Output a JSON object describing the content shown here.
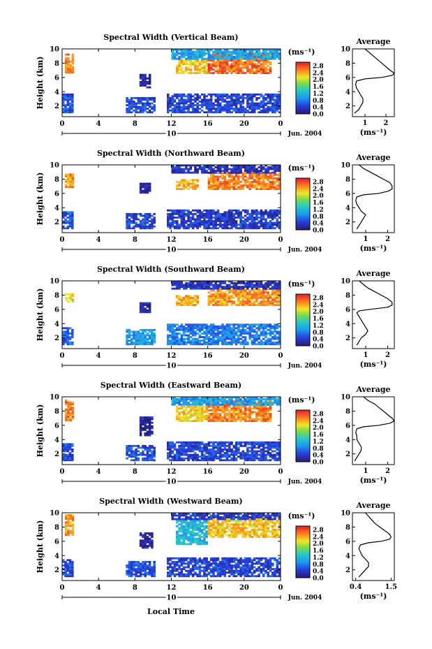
{
  "figure": {
    "xlabel": "Local Time",
    "date_label": "Jun. 2004",
    "day_label": "10"
  },
  "chart_data": [
    {
      "type": "heatmap",
      "title": "Spectral Width (Vertical Beam)",
      "ylabel": "Height (km)",
      "ylim": [
        0.5,
        10
      ],
      "yticks": [
        "2",
        "4",
        "6",
        "8",
        "10"
      ],
      "xlim": [
        0,
        24
      ],
      "xticks": [
        "0",
        "4",
        "8",
        "12",
        "16",
        "20",
        "0"
      ],
      "colorbar": {
        "unit": "(ms⁻¹)",
        "ticks": [
          "0.0",
          "0.4",
          "0.8",
          "1.2",
          "1.6",
          "2.0",
          "2.4",
          "2.8"
        ],
        "range": [
          0,
          3.0
        ]
      },
      "average_profile": {
        "title": "Average",
        "xlabel": "(ms⁻¹)",
        "xticks": [
          "1",
          "2"
        ],
        "xlim": [
          0.4,
          2.4
        ],
        "heights": [
          1.0,
          1.5,
          2.0,
          2.5,
          3.0,
          3.5,
          4.0,
          4.5,
          5.0,
          5.5,
          5.8,
          6.0,
          6.3,
          6.6,
          7.0,
          7.5,
          8.0,
          8.5,
          9.0,
          9.5,
          10.0
        ],
        "values": [
          0.5,
          0.7,
          0.8,
          0.9,
          0.9,
          0.8,
          0.7,
          0.6,
          0.55,
          0.6,
          1.0,
          1.8,
          2.3,
          2.4,
          2.2,
          2.0,
          1.8,
          1.6,
          1.4,
          1.2,
          1.0
        ]
      },
      "blocks": [
        {
          "t0": 0,
          "t1": 1.2,
          "h0": 1.0,
          "h1": 3.6,
          "v": 0.55
        },
        {
          "t0": 0.3,
          "t1": 1.1,
          "h0": 6.6,
          "h1": 9.2,
          "v": 2.6
        },
        {
          "t0": 7.0,
          "t1": 10.2,
          "h0": 1.0,
          "h1": 3.2,
          "v": 0.5
        },
        {
          "t0": 8.5,
          "t1": 9.6,
          "h0": 4.5,
          "h1": 6.5,
          "v": 0.15
        },
        {
          "t0": 11.5,
          "t1": 24,
          "h0": 1.0,
          "h1": 3.6,
          "v": 0.45
        },
        {
          "t0": 12.5,
          "t1": 16,
          "h0": 6.5,
          "h1": 8.6,
          "v": 2.3
        },
        {
          "t0": 16,
          "t1": 23,
          "h0": 6.5,
          "h1": 9.3,
          "v": 2.7
        },
        {
          "t0": 12,
          "t1": 24,
          "h0": 8.5,
          "h1": 10,
          "v": 1.0
        }
      ]
    },
    {
      "type": "heatmap",
      "title": "Spectral Width (Northward Beam)",
      "ylabel": "Height (km)",
      "ylim": [
        0.5,
        10
      ],
      "yticks": [
        "2",
        "4",
        "6",
        "8",
        "10"
      ],
      "xlim": [
        0,
        24
      ],
      "xticks": [
        "0",
        "4",
        "8",
        "12",
        "16",
        "20",
        "0"
      ],
      "colorbar": {
        "unit": "(ms⁻¹)",
        "ticks": [
          "0.0",
          "0.4",
          "0.8",
          "1.2",
          "1.6",
          "2.0",
          "2.4",
          "2.8"
        ],
        "range": [
          0,
          3.0
        ]
      },
      "average_profile": {
        "title": "Average",
        "xlabel": "(ms⁻¹)",
        "xticks": [
          "1",
          "2"
        ],
        "xlim": [
          0.4,
          2.3
        ],
        "heights": [
          1.0,
          1.5,
          2.0,
          2.5,
          3.0,
          3.5,
          4.0,
          4.5,
          5.0,
          5.5,
          5.8,
          6.0,
          6.3,
          6.6,
          7.0,
          7.5,
          8.0,
          8.5,
          9.0,
          9.5,
          10.0
        ],
        "values": [
          0.6,
          0.7,
          0.8,
          0.9,
          1.0,
          0.8,
          0.7,
          0.6,
          0.55,
          0.6,
          0.9,
          1.6,
          2.0,
          2.2,
          2.2,
          2.1,
          1.8,
          1.5,
          1.2,
          0.9,
          0.7
        ]
      },
      "blocks": [
        {
          "t0": 0,
          "t1": 1.2,
          "h0": 1.0,
          "h1": 3.5,
          "v": 0.6
        },
        {
          "t0": 0.3,
          "t1": 1.1,
          "h0": 6.8,
          "h1": 8.6,
          "v": 2.5
        },
        {
          "t0": 7.0,
          "t1": 10.2,
          "h0": 1.0,
          "h1": 3.2,
          "v": 0.5
        },
        {
          "t0": 8.5,
          "t1": 9.6,
          "h0": 6.0,
          "h1": 7.5,
          "v": 0.15
        },
        {
          "t0": 11.5,
          "t1": 24,
          "h0": 1.0,
          "h1": 3.6,
          "v": 0.4
        },
        {
          "t0": 12.5,
          "t1": 15,
          "h0": 6.5,
          "h1": 7.8,
          "v": 2.4
        },
        {
          "t0": 16,
          "t1": 24,
          "h0": 6.5,
          "h1": 8.8,
          "v": 2.6
        },
        {
          "t0": 12,
          "t1": 24,
          "h0": 8.8,
          "h1": 10,
          "v": 0.3
        }
      ]
    },
    {
      "type": "heatmap",
      "title": "Spectral Width (Southward Beam)",
      "ylabel": "Height (km)",
      "ylim": [
        0.5,
        10
      ],
      "yticks": [
        "2",
        "4",
        "6",
        "8",
        "10"
      ],
      "xlim": [
        0,
        24
      ],
      "xticks": [
        "0",
        "4",
        "8",
        "12",
        "16",
        "20",
        "0"
      ],
      "colorbar": {
        "unit": "(ms⁻¹)",
        "ticks": [
          "0.0",
          "0.4",
          "0.8",
          "1.2",
          "1.6",
          "2.0",
          "2.4",
          "2.8"
        ],
        "range": [
          0,
          3.0
        ]
      },
      "average_profile": {
        "title": "Average",
        "xlabel": "(ms⁻¹)",
        "xticks": [
          "1",
          "2"
        ],
        "xlim": [
          0.4,
          2.3
        ],
        "heights": [
          1.0,
          1.5,
          2.0,
          2.5,
          3.0,
          3.5,
          4.0,
          4.5,
          5.0,
          5.5,
          5.8,
          6.0,
          6.3,
          6.6,
          7.0,
          7.5,
          8.0,
          8.5,
          9.0,
          9.5,
          10.0
        ],
        "values": [
          0.6,
          0.7,
          0.8,
          1.0,
          1.1,
          1.0,
          0.9,
          0.8,
          0.7,
          0.6,
          0.7,
          1.2,
          2.0,
          2.2,
          2.2,
          2.0,
          1.7,
          1.4,
          1.1,
          0.9,
          0.7
        ]
      },
      "blocks": [
        {
          "t0": 0,
          "t1": 1.2,
          "h0": 1.0,
          "h1": 3.5,
          "v": 0.6
        },
        {
          "t0": 0.3,
          "t1": 1.1,
          "h0": 7.0,
          "h1": 8.2,
          "v": 2.2
        },
        {
          "t0": 7.0,
          "t1": 10.2,
          "h0": 1.0,
          "h1": 3.2,
          "v": 1.0
        },
        {
          "t0": 8.5,
          "t1": 9.6,
          "h0": 5.5,
          "h1": 7.0,
          "v": 0.15
        },
        {
          "t0": 11.5,
          "t1": 24,
          "h0": 1.0,
          "h1": 3.8,
          "v": 0.8
        },
        {
          "t0": 12.5,
          "t1": 15,
          "h0": 6.5,
          "h1": 8.0,
          "v": 2.4
        },
        {
          "t0": 16,
          "t1": 24,
          "h0": 6.5,
          "h1": 8.8,
          "v": 2.5
        },
        {
          "t0": 12,
          "t1": 24,
          "h0": 8.8,
          "h1": 10,
          "v": 0.3
        }
      ]
    },
    {
      "type": "heatmap",
      "title": "Spectral Width (Eastward Beam)",
      "ylabel": "Height (km)",
      "ylim": [
        0.5,
        10
      ],
      "yticks": [
        "2",
        "4",
        "6",
        "8",
        "10"
      ],
      "xlim": [
        0,
        24
      ],
      "xticks": [
        "0",
        "4",
        "8",
        "12",
        "16",
        "20",
        "0"
      ],
      "colorbar": {
        "unit": "(ms⁻¹)",
        "ticks": [
          "0.0",
          "0.4",
          "0.8",
          "1.2",
          "1.6",
          "2.0",
          "2.4",
          "2.8"
        ],
        "range": [
          0,
          3.0
        ]
      },
      "average_profile": {
        "title": "Average",
        "xlabel": "(ms⁻¹)",
        "xticks": [
          "1",
          "2"
        ],
        "xlim": [
          0.4,
          2.3
        ],
        "heights": [
          1.0,
          1.5,
          2.0,
          2.5,
          3.0,
          3.5,
          4.0,
          4.5,
          5.0,
          5.5,
          5.8,
          6.0,
          6.3,
          6.6,
          7.0,
          7.5,
          8.0,
          8.5,
          9.0,
          9.5,
          10.0
        ],
        "values": [
          0.5,
          0.6,
          0.7,
          0.8,
          0.8,
          0.7,
          0.6,
          0.6,
          0.55,
          0.6,
          0.9,
          1.6,
          2.1,
          2.3,
          2.2,
          2.0,
          1.8,
          1.6,
          1.4,
          1.1,
          0.9
        ]
      },
      "blocks": [
        {
          "t0": 0,
          "t1": 1.2,
          "h0": 1.0,
          "h1": 3.5,
          "v": 0.5
        },
        {
          "t0": 0.3,
          "t1": 1.1,
          "h0": 6.6,
          "h1": 9.5,
          "v": 2.6
        },
        {
          "t0": 7.0,
          "t1": 10.2,
          "h0": 1.0,
          "h1": 3.2,
          "v": 0.5
        },
        {
          "t0": 8.5,
          "t1": 9.8,
          "h0": 4.5,
          "h1": 7.2,
          "v": 0.15
        },
        {
          "t0": 11.5,
          "t1": 24,
          "h0": 1.0,
          "h1": 3.6,
          "v": 0.45
        },
        {
          "t0": 12.5,
          "t1": 16,
          "h0": 6.5,
          "h1": 8.6,
          "v": 2.3
        },
        {
          "t0": 16,
          "t1": 23,
          "h0": 6.5,
          "h1": 9.3,
          "v": 2.6
        },
        {
          "t0": 12,
          "t1": 24,
          "h0": 8.8,
          "h1": 10,
          "v": 1.0
        }
      ]
    },
    {
      "type": "heatmap",
      "title": "Spectral Width (Westward Beam)",
      "ylabel": "Height (km)",
      "ylim": [
        0.5,
        10
      ],
      "yticks": [
        "2",
        "4",
        "6",
        "8",
        "10"
      ],
      "xlim": [
        0,
        24
      ],
      "xticks": [
        "0",
        "4",
        "8",
        "12",
        "16",
        "20",
        "0"
      ],
      "colorbar": {
        "unit": "(ms⁻¹)",
        "ticks": [
          "0.0",
          "0.4",
          "0.8",
          "1.2",
          "1.6",
          "2.0",
          "2.4",
          "2.8"
        ],
        "range": [
          0,
          3.0
        ]
      },
      "average_profile": {
        "title": "Average",
        "xlabel": "(ms⁻¹)",
        "xticks": [
          "0.4",
          "1.5"
        ],
        "xlim": [
          0.3,
          1.6
        ],
        "heights": [
          1.0,
          1.5,
          2.0,
          2.5,
          3.0,
          3.5,
          4.0,
          4.5,
          5.0,
          5.5,
          5.8,
          6.0,
          6.3,
          6.6,
          7.0,
          7.5,
          8.0,
          8.5,
          9.0,
          9.5,
          10.0
        ],
        "values": [
          0.5,
          0.6,
          0.7,
          0.8,
          0.8,
          0.7,
          0.6,
          0.55,
          0.5,
          0.55,
          0.8,
          1.2,
          1.45,
          1.5,
          1.45,
          1.3,
          1.15,
          1.0,
          0.9,
          0.8,
          0.7
        ]
      },
      "blocks": [
        {
          "t0": 0,
          "t1": 1.2,
          "h0": 1.0,
          "h1": 3.5,
          "v": 0.5
        },
        {
          "t0": 0.3,
          "t1": 1.1,
          "h0": 6.8,
          "h1": 9.6,
          "v": 2.5
        },
        {
          "t0": 7.0,
          "t1": 10.2,
          "h0": 1.0,
          "h1": 3.2,
          "v": 0.55
        },
        {
          "t0": 8.5,
          "t1": 9.8,
          "h0": 5.0,
          "h1": 7.2,
          "v": 0.15
        },
        {
          "t0": 11.5,
          "t1": 24,
          "h0": 1.0,
          "h1": 3.6,
          "v": 0.45
        },
        {
          "t0": 12.5,
          "t1": 16,
          "h0": 5.5,
          "h1": 9.0,
          "v": 1.2
        },
        {
          "t0": 16,
          "t1": 24,
          "h0": 6.5,
          "h1": 9.3,
          "v": 2.3
        },
        {
          "t0": 12,
          "t1": 24,
          "h0": 9.0,
          "h1": 10,
          "v": 0.4
        }
      ]
    }
  ]
}
